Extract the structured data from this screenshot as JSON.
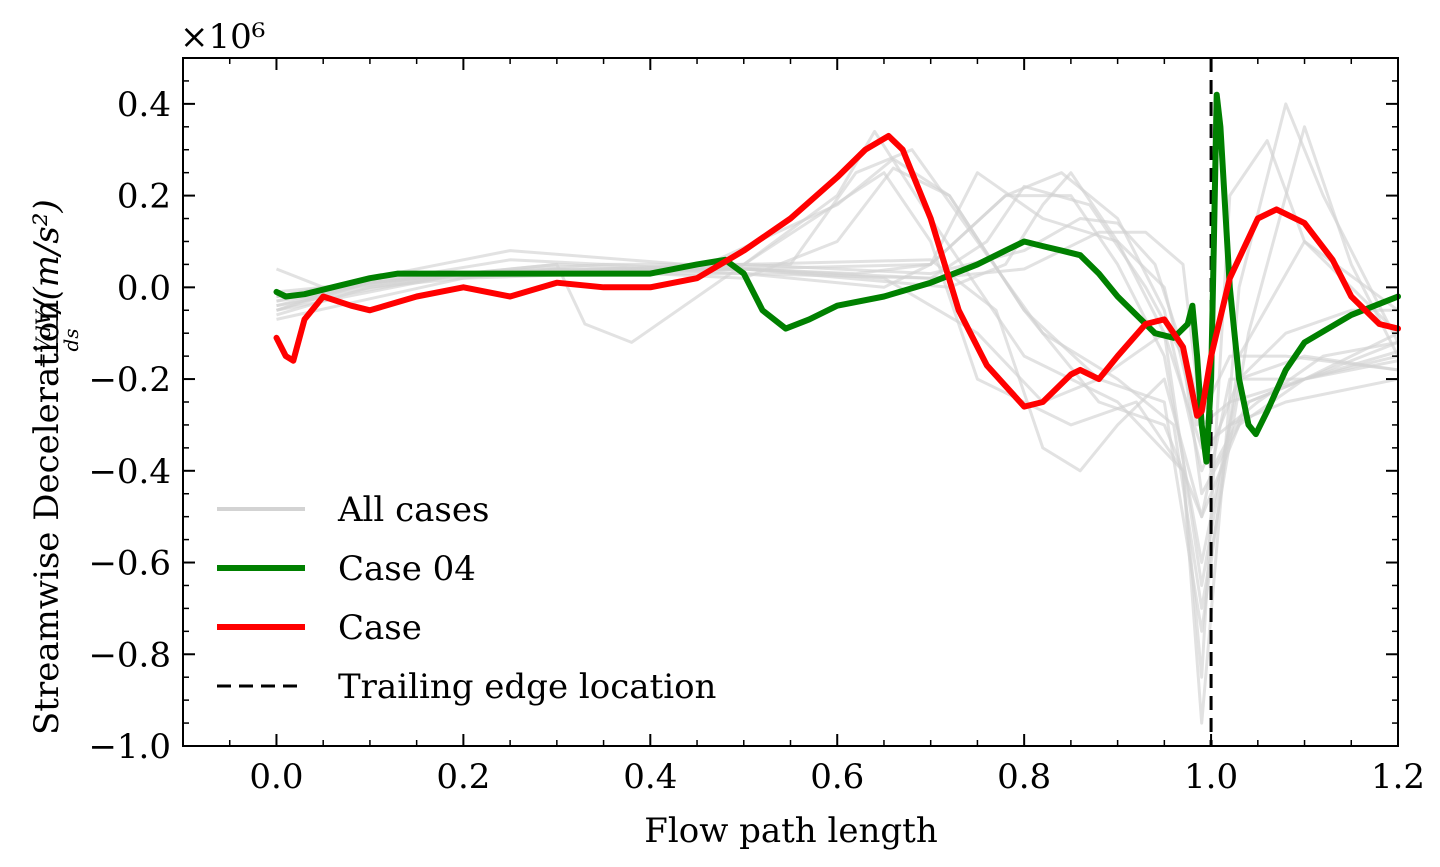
{
  "chart_data": {
    "type": "line",
    "title": "",
    "xlabel": "Flow path length",
    "ylabel": "Streamwise Deceleration −VdV/ds /(m/s²)",
    "ylabel_parts": {
      "prefix": "Streamwise Deceleration",
      "num": "−VdV",
      "den": "ds",
      "suffix": "/(m/s²)"
    },
    "y_scale_label": "×10⁶",
    "xlim": [
      -0.1,
      1.2
    ],
    "ylim": [
      -1.0,
      0.5
    ],
    "xticks": [
      0.0,
      0.2,
      0.4,
      0.6,
      0.8,
      1.0,
      1.2
    ],
    "xtick_labels": [
      "0.0",
      "0.2",
      "0.4",
      "0.6",
      "0.8",
      "1.0",
      "1.2"
    ],
    "yticks": [
      0.4,
      0.2,
      0.0,
      -0.2,
      -0.4,
      -0.6,
      -0.8,
      -1.0
    ],
    "ytick_labels": [
      "0.4",
      "0.2",
      "0.0",
      "−0.2",
      "−0.4",
      "−0.6",
      "−0.8",
      "−1.0"
    ],
    "grid": false,
    "legend_placement": "lower-left",
    "legend": [
      {
        "label": "All cases",
        "color": "#d3d3d3",
        "style": "solid"
      },
      {
        "label": "Case 04",
        "color": "#008000",
        "style": "solid"
      },
      {
        "label": "Case",
        "color": "#ff0000",
        "style": "solid"
      },
      {
        "label": "Trailing edge location",
        "color": "#000000",
        "style": "dashed"
      }
    ],
    "trailing_edge_x": 1.0,
    "series": [
      {
        "name": "Case 04",
        "color": "#008000",
        "x": [
          0.0,
          0.01,
          0.03,
          0.06,
          0.1,
          0.13,
          0.2,
          0.3,
          0.4,
          0.45,
          0.48,
          0.5,
          0.52,
          0.545,
          0.57,
          0.6,
          0.65,
          0.7,
          0.75,
          0.78,
          0.8,
          0.82,
          0.84,
          0.86,
          0.88,
          0.9,
          0.92,
          0.94,
          0.96,
          0.975,
          0.98,
          0.985,
          0.99,
          0.995,
          1.0,
          1.003,
          1.006,
          1.01,
          1.02,
          1.03,
          1.04,
          1.048,
          1.06,
          1.08,
          1.1,
          1.15,
          1.2
        ],
        "y": [
          -0.01,
          -0.02,
          -0.015,
          0.0,
          0.02,
          0.03,
          0.03,
          0.03,
          0.03,
          0.05,
          0.06,
          0.03,
          -0.05,
          -0.09,
          -0.07,
          -0.04,
          -0.02,
          0.01,
          0.05,
          0.08,
          0.1,
          0.09,
          0.08,
          0.07,
          0.03,
          -0.02,
          -0.06,
          -0.1,
          -0.11,
          -0.08,
          -0.04,
          -0.15,
          -0.3,
          -0.38,
          -0.2,
          0.1,
          0.42,
          0.35,
          0.0,
          -0.2,
          -0.3,
          -0.32,
          -0.27,
          -0.18,
          -0.12,
          -0.06,
          -0.02
        ]
      },
      {
        "name": "Case",
        "color": "#ff0000",
        "x": [
          0.0,
          0.01,
          0.018,
          0.03,
          0.05,
          0.08,
          0.1,
          0.15,
          0.2,
          0.25,
          0.3,
          0.35,
          0.4,
          0.45,
          0.5,
          0.55,
          0.6,
          0.63,
          0.655,
          0.67,
          0.7,
          0.73,
          0.76,
          0.8,
          0.82,
          0.85,
          0.86,
          0.88,
          0.9,
          0.93,
          0.95,
          0.97,
          0.985,
          0.99,
          1.0,
          1.02,
          1.05,
          1.07,
          1.1,
          1.13,
          1.15,
          1.18,
          1.2
        ],
        "y": [
          -0.11,
          -0.15,
          -0.16,
          -0.07,
          -0.02,
          -0.04,
          -0.05,
          -0.02,
          0.0,
          -0.02,
          0.01,
          0.0,
          0.0,
          0.02,
          0.08,
          0.15,
          0.24,
          0.3,
          0.33,
          0.3,
          0.15,
          -0.05,
          -0.17,
          -0.26,
          -0.25,
          -0.19,
          -0.18,
          -0.2,
          -0.15,
          -0.08,
          -0.07,
          -0.13,
          -0.28,
          -0.27,
          -0.15,
          0.02,
          0.15,
          0.17,
          0.14,
          0.06,
          -0.02,
          -0.08,
          -0.09
        ]
      },
      {
        "name": "",
        "color": "#d3d3d3",
        "x": [
          0.0,
          0.05,
          0.2,
          0.35,
          0.5,
          0.6,
          0.64,
          0.7,
          0.8,
          0.9,
          0.97,
          0.99,
          1.02,
          1.06,
          1.1,
          1.2
        ],
        "y": [
          -0.02,
          0.0,
          0.03,
          0.05,
          0.05,
          0.2,
          0.34,
          0.15,
          -0.15,
          -0.25,
          -0.4,
          -0.85,
          0.2,
          0.32,
          0.1,
          -0.1
        ]
      },
      {
        "name": "",
        "color": "#d3d3d3",
        "x": [
          0.0,
          0.05,
          0.2,
          0.3,
          0.33,
          0.38,
          0.5,
          0.65,
          0.7,
          0.75,
          0.85,
          0.92,
          0.97,
          0.99,
          1.03,
          1.08,
          1.12,
          1.2
        ],
        "y": [
          0.04,
          0.0,
          0.03,
          0.05,
          -0.08,
          -0.12,
          0.05,
          0.25,
          0.1,
          -0.2,
          -0.3,
          -0.25,
          -0.4,
          -0.95,
          0.0,
          0.4,
          0.2,
          -0.12
        ]
      },
      {
        "name": "",
        "color": "#d3d3d3",
        "x": [
          0.0,
          0.1,
          0.25,
          0.45,
          0.55,
          0.62,
          0.68,
          0.75,
          0.82,
          0.9,
          0.96,
          0.99,
          1.04,
          1.1,
          1.15,
          1.2
        ],
        "y": [
          -0.05,
          0.01,
          0.06,
          0.04,
          0.05,
          0.25,
          0.3,
          0.1,
          -0.1,
          -0.2,
          -0.3,
          -0.7,
          -0.1,
          0.35,
          0.05,
          -0.15
        ]
      },
      {
        "name": "",
        "color": "#d3d3d3",
        "x": [
          0.0,
          0.1,
          0.3,
          0.5,
          0.62,
          0.7,
          0.78,
          0.85,
          0.9,
          0.95,
          0.99,
          1.03,
          1.08,
          1.15,
          1.2
        ],
        "y": [
          -0.03,
          0.02,
          0.04,
          0.04,
          0.03,
          0.05,
          0.2,
          0.2,
          0.05,
          -0.15,
          -0.6,
          -0.2,
          -0.1,
          -0.05,
          -0.05
        ]
      },
      {
        "name": "",
        "color": "#d3d3d3",
        "x": [
          0.0,
          0.1,
          0.3,
          0.5,
          0.6,
          0.66,
          0.72,
          0.8,
          0.88,
          0.95,
          0.99,
          1.04,
          1.1,
          1.2
        ],
        "y": [
          -0.06,
          0.0,
          0.04,
          0.02,
          0.1,
          0.26,
          0.2,
          -0.05,
          -0.25,
          -0.3,
          -0.5,
          -0.25,
          -0.2,
          -0.1
        ]
      },
      {
        "name": "",
        "color": "#d3d3d3",
        "x": [
          0.0,
          0.15,
          0.3,
          0.5,
          0.65,
          0.7,
          0.75,
          0.82,
          0.9,
          0.95,
          0.985,
          1.02,
          1.08,
          1.2
        ],
        "y": [
          -0.02,
          0.02,
          0.03,
          0.03,
          0.0,
          0.05,
          0.25,
          0.15,
          0.1,
          0.0,
          -0.3,
          -0.15,
          -0.15,
          -0.18
        ]
      },
      {
        "name": "",
        "color": "#d3d3d3",
        "x": [
          0.0,
          0.1,
          0.3,
          0.5,
          0.7,
          0.76,
          0.8,
          0.87,
          0.93,
          0.97,
          0.99,
          1.03,
          1.1,
          1.2
        ],
        "y": [
          -0.04,
          0.01,
          0.05,
          0.03,
          0.02,
          0.1,
          0.22,
          0.18,
          0.0,
          -0.15,
          -0.45,
          -0.3,
          -0.2,
          -0.15
        ]
      },
      {
        "name": "",
        "color": "#d3d3d3",
        "x": [
          0.0,
          0.1,
          0.25,
          0.5,
          0.72,
          0.78,
          0.82,
          0.85,
          0.9,
          0.95,
          0.99,
          1.05,
          1.12,
          1.2
        ],
        "y": [
          -0.05,
          0.02,
          0.08,
          0.04,
          0.0,
          0.05,
          0.18,
          0.25,
          0.1,
          -0.1,
          -0.35,
          -0.25,
          -0.15,
          -0.12
        ]
      },
      {
        "name": "",
        "color": "#d3d3d3",
        "x": [
          0.0,
          0.2,
          0.5,
          0.7,
          0.8,
          0.86,
          0.9,
          0.94,
          0.98,
          1.0,
          1.04,
          1.1,
          1.2
        ],
        "y": [
          -0.03,
          0.03,
          0.05,
          0.03,
          0.08,
          0.15,
          0.14,
          0.05,
          -0.2,
          -0.4,
          -0.25,
          -0.2,
          -0.12
        ]
      },
      {
        "name": "",
        "color": "#d3d3d3",
        "x": [
          0.0,
          0.2,
          0.5,
          0.7,
          0.8,
          0.88,
          0.93,
          0.97,
          0.99,
          1.02,
          1.1,
          1.2
        ],
        "y": [
          -0.07,
          0.02,
          0.04,
          0.02,
          0.04,
          0.12,
          0.12,
          0.05,
          -0.3,
          -0.25,
          -0.2,
          -0.16
        ]
      },
      {
        "name": "",
        "color": "#d3d3d3",
        "x": [
          0.0,
          0.2,
          0.5,
          0.7,
          0.77,
          0.82,
          0.86,
          0.9,
          0.95,
          0.99,
          1.02,
          1.1,
          1.2
        ],
        "y": [
          -0.01,
          0.03,
          0.05,
          0.06,
          -0.05,
          -0.35,
          -0.4,
          -0.3,
          -0.2,
          -0.5,
          -0.2,
          -0.2,
          -0.14
        ]
      },
      {
        "name": "",
        "color": "#d3d3d3",
        "x": [
          0.0,
          0.2,
          0.5,
          0.65,
          0.75,
          0.82,
          0.88,
          0.95,
          0.99,
          1.02,
          1.08,
          1.2
        ],
        "y": [
          -0.04,
          0.03,
          0.04,
          0.02,
          -0.1,
          -0.25,
          -0.2,
          -0.1,
          -0.65,
          -0.3,
          -0.25,
          -0.2
        ]
      },
      {
        "name": "",
        "color": "#d3d3d3",
        "x": [
          0.0,
          0.2,
          0.45,
          0.6,
          0.66,
          0.72,
          0.8,
          0.88,
          0.95,
          0.99,
          1.03,
          1.1,
          1.2
        ],
        "y": [
          -0.02,
          0.03,
          0.04,
          0.18,
          0.28,
          0.2,
          -0.05,
          -0.2,
          -0.25,
          -0.75,
          -0.15,
          0.1,
          -0.05
        ]
      },
      {
        "name": "",
        "color": "#d3d3d3",
        "x": [
          0.0,
          0.2,
          0.5,
          0.7,
          0.78,
          0.84,
          0.9,
          0.95,
          0.99,
          1.03,
          1.1,
          1.2
        ],
        "y": [
          -0.05,
          0.03,
          0.04,
          0.05,
          0.2,
          0.25,
          0.15,
          -0.05,
          -0.4,
          -0.2,
          -0.15,
          -0.18
        ]
      }
    ]
  }
}
